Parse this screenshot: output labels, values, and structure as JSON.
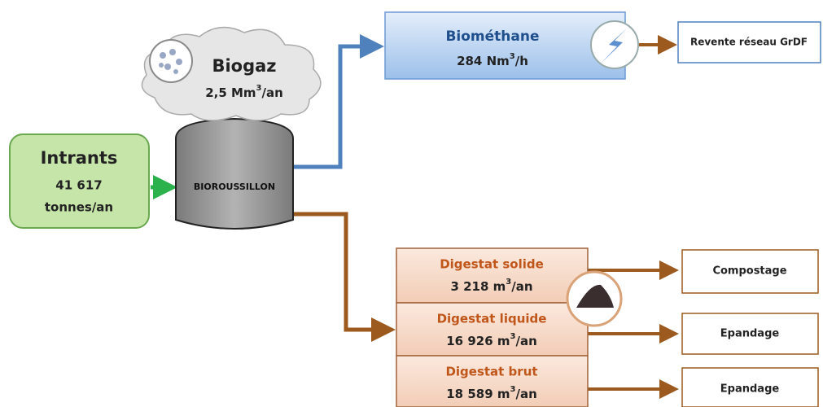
{
  "intrants": {
    "title": "Intrants",
    "amount": "41 617",
    "unit": "tonnes/an"
  },
  "digester": {
    "label": "BIOROUSSILLON"
  },
  "biogaz": {
    "title": "Biogaz",
    "amount": "2,5 Mm",
    "sup": "3",
    "unit": "/an"
  },
  "biomethane": {
    "title": "Biométhane",
    "amount": "284 Nm",
    "sup": "3",
    "unit": "/h"
  },
  "grid": {
    "label": "Revente réseau GrDF"
  },
  "digestats": [
    {
      "title": "Digestat solide",
      "amount": "3 218 m",
      "sup": "3",
      "unit": "/an",
      "destination": "Compostage"
    },
    {
      "title": "Digestat liquide",
      "amount": "16 926 m",
      "sup": "3",
      "unit": "/an",
      "destination": "Epandage"
    },
    {
      "title": "Digestat brut",
      "amount": "18 589 m",
      "sup": "3",
      "unit": "/an",
      "destination": "Epandage"
    }
  ]
}
